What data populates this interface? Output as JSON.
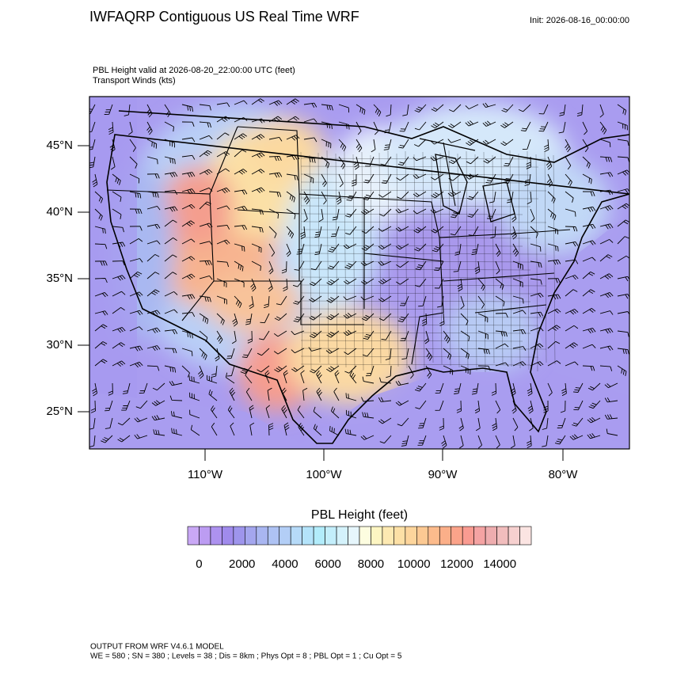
{
  "header": {
    "title": "IWFAQRP Contiguous US Real Time WRF",
    "init": "Init: 2026-08-16_00:00:00"
  },
  "plot": {
    "subtitle_lines": [
      "PBL Height valid at 2026-08-20_22:00:00 UTC   (feet)",
      "Transport Winds   (kts)"
    ],
    "lat_labels": [
      "45°N",
      "40°N",
      "35°N",
      "30°N",
      "25°N"
    ],
    "lon_labels": [
      "110°W",
      "100°W",
      "90°W",
      "80°W"
    ]
  },
  "colorbar": {
    "title": "PBL Height  (feet)",
    "colors": [
      "#c9a8f5",
      "#bc9cf2",
      "#ad92ef",
      "#a08bec",
      "#9e95ec",
      "#a4a6ee",
      "#a9b6f1",
      "#aec2f3",
      "#b3cef6",
      "#b6daf8",
      "#b4e3fa",
      "#b2ecfb",
      "#c3eefb",
      "#d4f2fb",
      "#e6f6fc",
      "#fdfde0",
      "#fdf5c2",
      "#fde9b2",
      "#fde0a6",
      "#fdd59c",
      "#fcc993",
      "#fcbb8c",
      "#fbaf89",
      "#fba38a",
      "#f99b91",
      "#f4a3a3",
      "#eeadaf",
      "#f1bdbd",
      "#f6d0cf",
      "#fbe4e2"
    ],
    "ticks": [
      0,
      2000,
      4000,
      6000,
      8000,
      10000,
      12000,
      14000
    ]
  },
  "footer": {
    "lines": [
      "OUTPUT FROM WRF V4.6.1 MODEL",
      "WE = 580 ; SN = 380 ; Levels = 38 ; Dis = 8km ; Phys Opt = 8 ; PBL Opt = 1 ; Cu Opt = 5"
    ]
  }
}
